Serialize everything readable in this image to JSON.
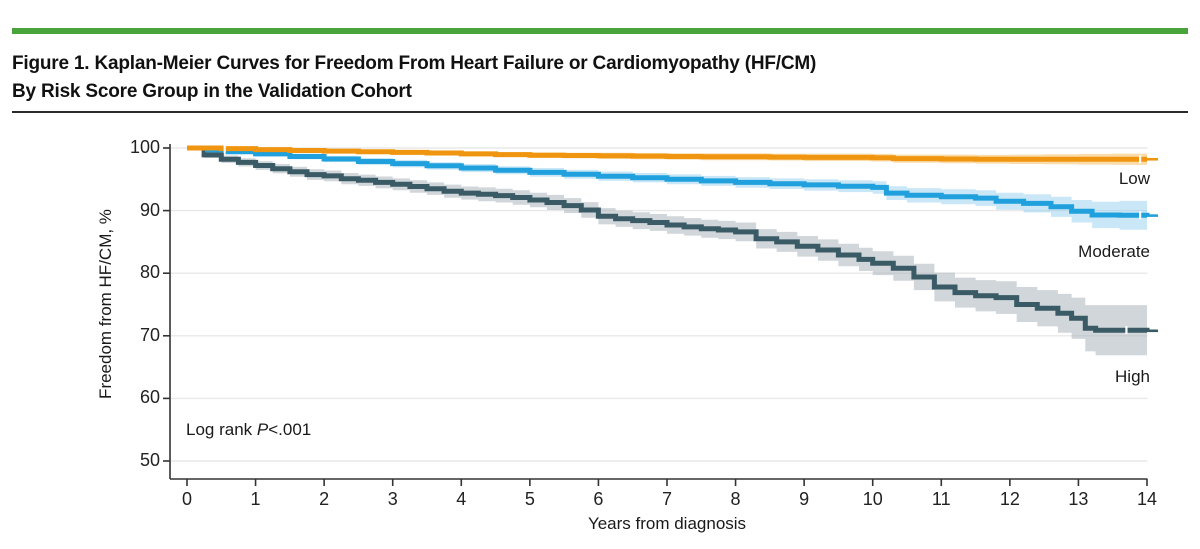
{
  "figure": {
    "title_line1": "Figure 1. Kaplan-Meier Curves for Freedom From Heart Failure or Cardiomyopathy (HF/CM)",
    "title_line2": "By Risk Score Group in the Validation Cohort",
    "accent_color": "#4AA43C"
  },
  "chart_data": {
    "type": "line",
    "subtype": "kaplan-meier-step-with-ci",
    "xlabel": "Years from diagnosis",
    "ylabel": "Freedom from HF/CM, %",
    "xlim": [
      0,
      14
    ],
    "ylim": [
      47,
      102
    ],
    "x_ticks": [
      0,
      1,
      2,
      3,
      4,
      5,
      6,
      7,
      8,
      9,
      10,
      11,
      12,
      13,
      14
    ],
    "y_ticks": [
      100,
      90,
      80,
      70,
      60,
      50
    ],
    "grid": "horizontal",
    "gridline_color": "#e8e8e8",
    "axis_color": "#333333",
    "annotation": {
      "lead": "Log rank ",
      "stat": "P",
      "value": "<.001"
    },
    "series": [
      {
        "name": "Low",
        "color": "#F0950F",
        "ci_color": "rgba(243,163,35,0.38)",
        "end_value": 98.2,
        "censor_x": [
          0.55,
          13.9
        ],
        "points": [
          [
            0,
            100,
            0.2
          ],
          [
            0.5,
            99.9,
            0.2
          ],
          [
            1,
            99.75,
            0.25
          ],
          [
            1.5,
            99.6,
            0.3
          ],
          [
            2,
            99.5,
            0.3
          ],
          [
            2.5,
            99.4,
            0.3
          ],
          [
            3,
            99.3,
            0.35
          ],
          [
            3.5,
            99.2,
            0.35
          ],
          [
            4,
            99.05,
            0.4
          ],
          [
            4.5,
            98.95,
            0.4
          ],
          [
            5,
            98.85,
            0.45
          ],
          [
            5.5,
            98.8,
            0.45
          ],
          [
            6,
            98.75,
            0.5
          ],
          [
            6.5,
            98.7,
            0.5
          ],
          [
            7,
            98.65,
            0.5
          ],
          [
            7.5,
            98.6,
            0.55
          ],
          [
            8,
            98.6,
            0.55
          ],
          [
            8.5,
            98.55,
            0.55
          ],
          [
            9,
            98.5,
            0.6
          ],
          [
            9.5,
            98.5,
            0.6
          ],
          [
            10,
            98.45,
            0.6
          ],
          [
            10.3,
            98.3,
            0.65
          ],
          [
            11,
            98.25,
            0.7
          ],
          [
            11.5,
            98.2,
            0.7
          ],
          [
            12,
            98.2,
            0.75
          ],
          [
            12.5,
            98.2,
            0.8
          ],
          [
            13,
            98.2,
            0.85
          ],
          [
            13.5,
            98.2,
            0.9
          ],
          [
            14,
            98.2,
            0.9
          ]
        ]
      },
      {
        "name": "Moderate",
        "color": "#20A0DC",
        "ci_color": "rgba(137,202,238,0.45)",
        "end_value": 89.2,
        "censor_x": [
          13.9
        ],
        "points": [
          [
            0,
            100,
            0.25
          ],
          [
            0.3,
            99.7,
            0.3
          ],
          [
            0.6,
            99.4,
            0.35
          ],
          [
            1,
            99.05,
            0.4
          ],
          [
            1.5,
            98.65,
            0.45
          ],
          [
            2,
            98.25,
            0.5
          ],
          [
            2.5,
            97.85,
            0.55
          ],
          [
            3,
            97.5,
            0.6
          ],
          [
            3.5,
            97.15,
            0.6
          ],
          [
            4,
            96.8,
            0.65
          ],
          [
            4.5,
            96.45,
            0.65
          ],
          [
            5,
            96.1,
            0.7
          ],
          [
            5.5,
            95.8,
            0.7
          ],
          [
            6,
            95.5,
            0.75
          ],
          [
            6.5,
            95.25,
            0.75
          ],
          [
            7,
            95.0,
            0.8
          ],
          [
            7.5,
            94.75,
            0.8
          ],
          [
            8,
            94.5,
            0.85
          ],
          [
            8.5,
            94.3,
            0.85
          ],
          [
            9,
            94.1,
            0.9
          ],
          [
            9.5,
            93.9,
            0.95
          ],
          [
            10,
            93.7,
            1.0
          ],
          [
            10.2,
            92.8,
            1.1
          ],
          [
            10.5,
            92.45,
            1.15
          ],
          [
            11,
            92.2,
            1.2
          ],
          [
            11.5,
            92.0,
            1.25
          ],
          [
            11.8,
            91.5,
            1.35
          ],
          [
            12.2,
            91.15,
            1.45
          ],
          [
            12.6,
            90.6,
            1.6
          ],
          [
            12.9,
            89.9,
            1.8
          ],
          [
            13.2,
            89.3,
            2.1
          ],
          [
            13.6,
            89.25,
            2.3
          ],
          [
            14,
            89.2,
            2.4
          ]
        ]
      },
      {
        "name": "High",
        "color": "#3A5A66",
        "ci_color": "rgba(170,180,187,0.55)",
        "end_value": 70.8,
        "censor_x": [
          13.7
        ],
        "points": [
          [
            0,
            100,
            0.3
          ],
          [
            0.25,
            98.9,
            0.5
          ],
          [
            0.5,
            98.2,
            0.6
          ],
          [
            0.75,
            97.7,
            0.65
          ],
          [
            1,
            97.2,
            0.7
          ],
          [
            1.25,
            96.7,
            0.75
          ],
          [
            1.5,
            96.2,
            0.8
          ],
          [
            1.75,
            95.75,
            0.85
          ],
          [
            2,
            95.55,
            0.85
          ],
          [
            2.25,
            95.1,
            0.9
          ],
          [
            2.5,
            94.85,
            0.9
          ],
          [
            2.75,
            94.5,
            0.95
          ],
          [
            3,
            94.2,
            0.95
          ],
          [
            3.25,
            93.85,
            1.0
          ],
          [
            3.5,
            93.5,
            1.0
          ],
          [
            3.75,
            93.1,
            1.05
          ],
          [
            4,
            92.8,
            1.05
          ],
          [
            4.25,
            92.6,
            1.1
          ],
          [
            4.5,
            92.4,
            1.1
          ],
          [
            4.75,
            92.1,
            1.15
          ],
          [
            5,
            91.7,
            1.15
          ],
          [
            5.25,
            91.3,
            1.2
          ],
          [
            5.5,
            90.8,
            1.2
          ],
          [
            5.75,
            90.1,
            1.25
          ],
          [
            6,
            89.1,
            1.3
          ],
          [
            6.25,
            88.7,
            1.3
          ],
          [
            6.5,
            88.4,
            1.35
          ],
          [
            6.75,
            88.1,
            1.35
          ],
          [
            7,
            87.7,
            1.4
          ],
          [
            7.25,
            87.4,
            1.4
          ],
          [
            7.5,
            87.1,
            1.45
          ],
          [
            7.75,
            86.9,
            1.45
          ],
          [
            8,
            86.6,
            1.5
          ],
          [
            8.3,
            85.5,
            1.55
          ],
          [
            8.6,
            85.0,
            1.6
          ],
          [
            8.9,
            84.3,
            1.65
          ],
          [
            9.2,
            83.7,
            1.7
          ],
          [
            9.5,
            82.9,
            1.8
          ],
          [
            9.8,
            82.2,
            1.85
          ],
          [
            10,
            81.6,
            1.9
          ],
          [
            10.3,
            80.8,
            2.0
          ],
          [
            10.6,
            79.4,
            2.1
          ],
          [
            10.9,
            77.8,
            2.3
          ],
          [
            11.2,
            76.9,
            2.4
          ],
          [
            11.5,
            76.4,
            2.5
          ],
          [
            11.8,
            76.1,
            2.6
          ],
          [
            12.1,
            75.0,
            2.8
          ],
          [
            12.4,
            74.4,
            2.9
          ],
          [
            12.7,
            73.6,
            3.1
          ],
          [
            12.9,
            72.8,
            3.3
          ],
          [
            13.1,
            71.2,
            3.7
          ],
          [
            13.25,
            70.9,
            4.0
          ],
          [
            14,
            70.8,
            4.2
          ]
        ]
      }
    ]
  }
}
